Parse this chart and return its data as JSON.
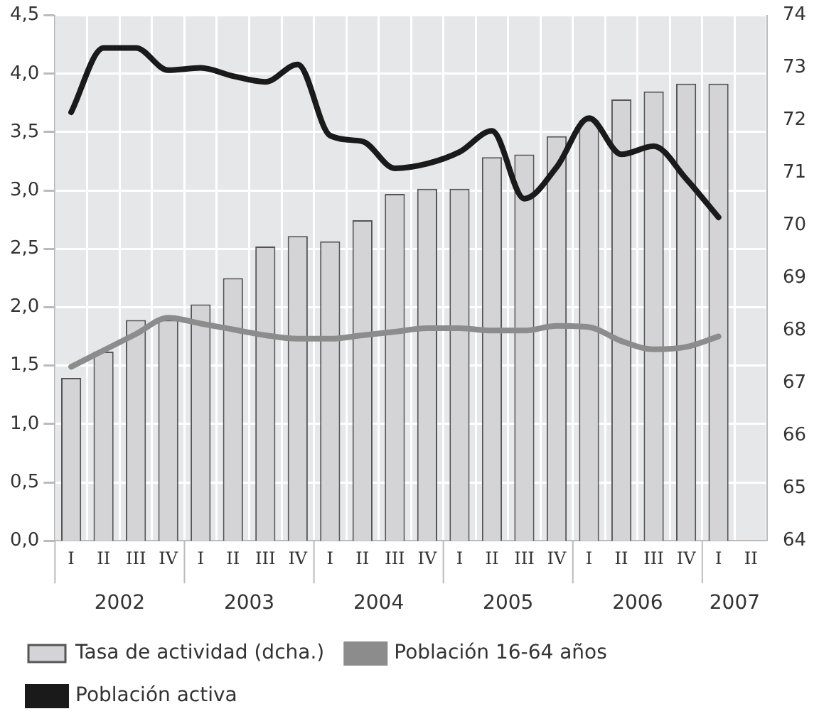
{
  "chart_data": {
    "type": "bar",
    "categories": [
      "I",
      "II",
      "III",
      "IV",
      "I",
      "II",
      "III",
      "IV",
      "I",
      "II",
      "III",
      "IV",
      "I",
      "II",
      "III",
      "IV",
      "I",
      "II",
      "III",
      "IV",
      "I",
      "II"
    ],
    "annotations": [
      "2002",
      "2003",
      "2004",
      "2005",
      "2006",
      "2007"
    ],
    "series": [
      {
        "name": "Tasa de actividad (dcha.)",
        "axis": "y2",
        "color": "#d4d4d6",
        "values": [
          67.1,
          67.6,
          68.2,
          68.2,
          68.5,
          69.0,
          69.6,
          69.8,
          69.7,
          70.1,
          70.6,
          70.7,
          70.7,
          71.3,
          71.35,
          71.7,
          72.0,
          72.4,
          72.55,
          72.7,
          72.7,
          null
        ]
      },
      {
        "name": "Población 16-64 años",
        "type": "line",
        "color": "#8c8c8c",
        "values": [
          1.49,
          1.63,
          1.77,
          1.91,
          1.86,
          1.81,
          1.76,
          1.73,
          1.73,
          1.76,
          1.79,
          1.82,
          1.82,
          1.8,
          1.8,
          1.84,
          1.83,
          1.71,
          1.64,
          1.66,
          1.75,
          null
        ]
      },
      {
        "name": "Población activa",
        "type": "line",
        "color": "#1a1a1a",
        "values": [
          3.67,
          4.22,
          4.22,
          4.03,
          4.05,
          3.98,
          3.93,
          4.08,
          3.47,
          3.42,
          3.19,
          3.23,
          3.33,
          3.51,
          2.93,
          3.2,
          3.62,
          3.31,
          3.38,
          3.1,
          2.77,
          null
        ]
      }
    ],
    "ylim": [
      0,
      4.5
    ],
    "yticks": [
      {
        "value": 0,
        "label": "0,0"
      },
      {
        "value": 0.5,
        "label": "0,5"
      },
      {
        "value": 1,
        "label": "1,0"
      },
      {
        "value": 1.5,
        "label": "1,5"
      },
      {
        "value": 2,
        "label": "2,0"
      },
      {
        "value": 2.5,
        "label": "2,5"
      },
      {
        "value": 3,
        "label": "3,0"
      },
      {
        "value": 3.5,
        "label": "3,5"
      },
      {
        "value": 4,
        "label": "4,0"
      },
      {
        "value": 4.5,
        "label": "4,5"
      }
    ],
    "y2lim": [
      64,
      74
    ],
    "y2ticks": [
      64,
      65,
      66,
      67,
      68,
      69,
      70,
      71,
      72,
      73,
      74
    ],
    "grid": true,
    "legend": "bottom",
    "marker": "none",
    "line_style": "solid"
  }
}
